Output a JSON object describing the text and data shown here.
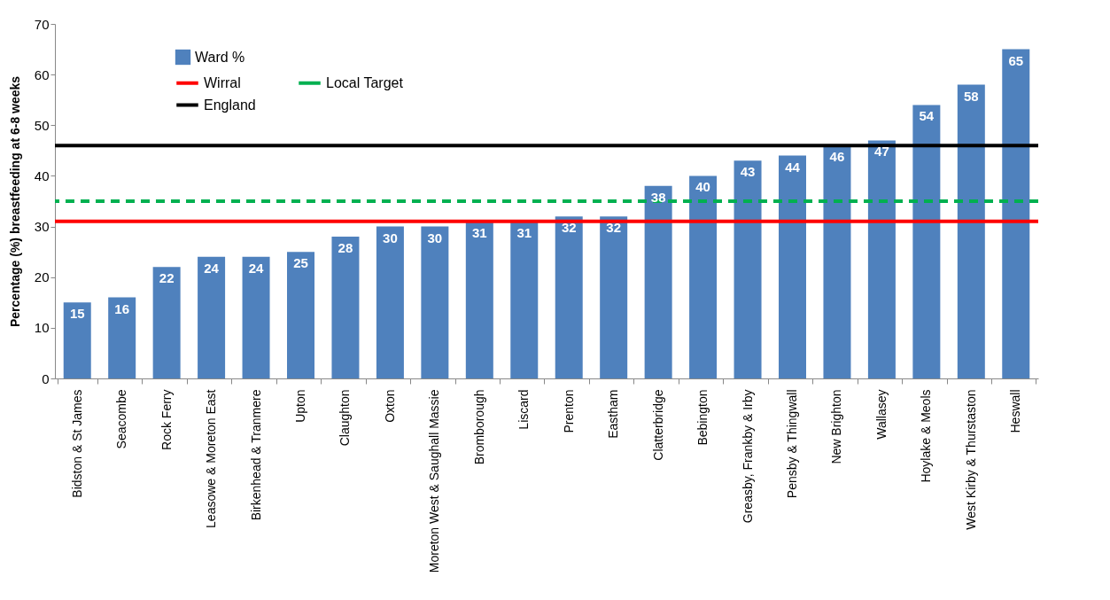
{
  "chart_data": {
    "type": "bar",
    "ylabel": "Percentage (%) breastfeeding at 6-8 weeks",
    "categories": [
      "Bidston & St James",
      "Seacombe",
      "Rock Ferry",
      "Leasowe & Moreton East",
      "Birkenhead & Tranmere",
      "Upton",
      "Claughton",
      "Oxton",
      "Moreton West & Saughall Massie",
      "Bromborough",
      "Liscard",
      "Prenton",
      "Eastham",
      "Clatterbridge",
      "Bebington",
      "Greasby, Frankby & Irby",
      "Pensby & Thingwall",
      "New Brighton",
      "Wallasey",
      "Hoylake & Meols",
      "West Kirby & Thurstaston",
      "Heswall"
    ],
    "series": [
      {
        "name": "Ward %",
        "color": "#4f81bd",
        "values": [
          15,
          16,
          22,
          24,
          24,
          25,
          28,
          30,
          30,
          31,
          31,
          32,
          32,
          38,
          40,
          43,
          44,
          46,
          47,
          54,
          58,
          65
        ]
      }
    ],
    "data_labels": true,
    "ref_lines": [
      {
        "axis": "y",
        "value": 31,
        "label": "Wirral",
        "color": "#ff0000",
        "line_style": "solid"
      },
      {
        "axis": "y",
        "value": 46,
        "label": "England",
        "color": "#000000",
        "line_style": "solid"
      },
      {
        "axis": "y",
        "value": 35,
        "label": "Local Target",
        "color": "#00b050",
        "line_style": "dashed"
      }
    ],
    "ylim": [
      0,
      70
    ],
    "yticks": [
      0,
      10,
      20,
      30,
      40,
      50,
      60,
      70
    ],
    "grid": false,
    "legend": "top left"
  }
}
